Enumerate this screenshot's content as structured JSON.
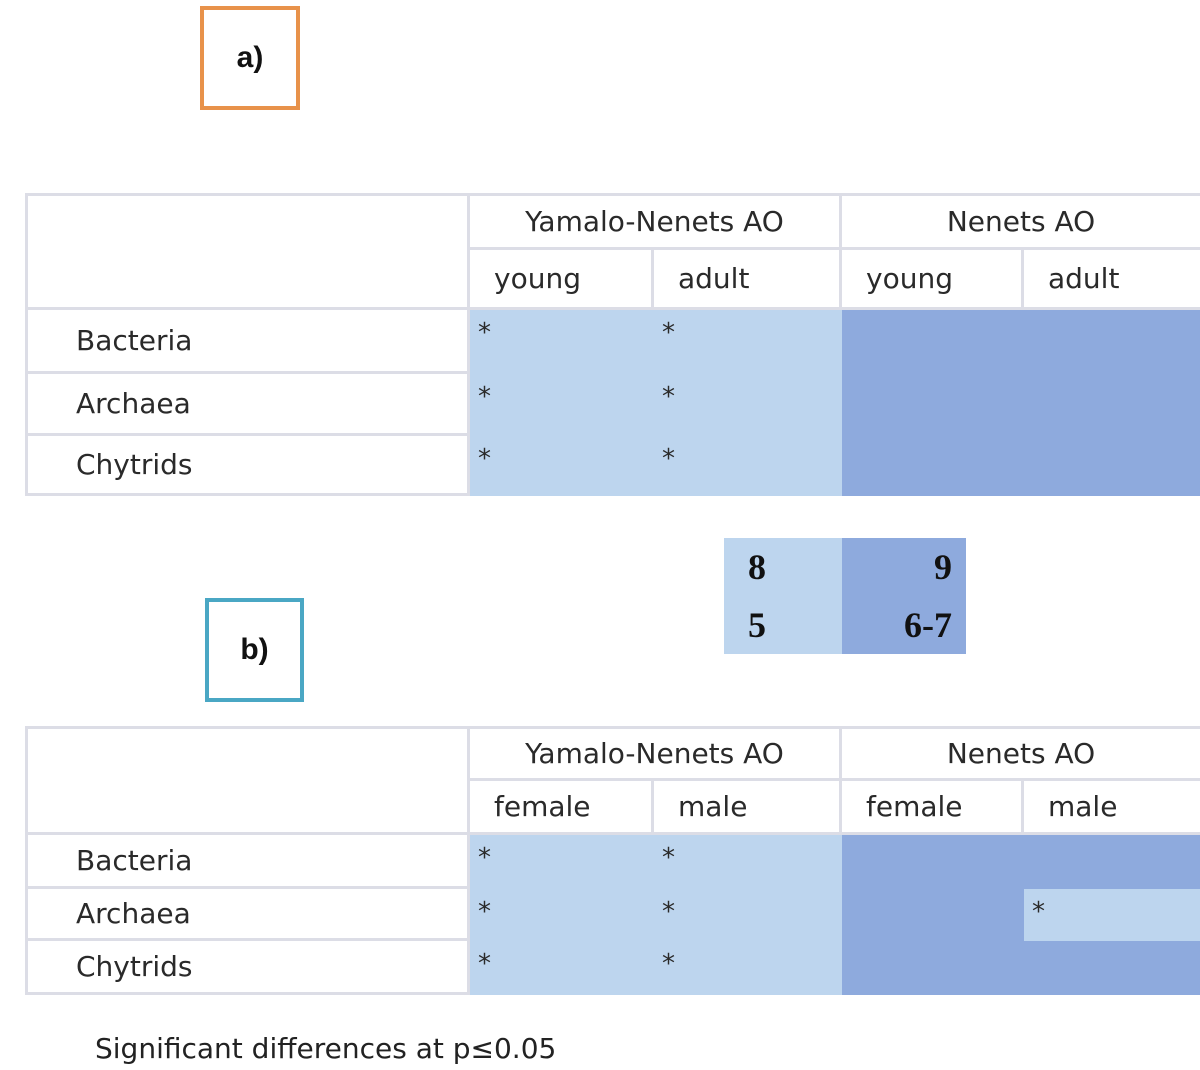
{
  "panel_a": {
    "label": "a)",
    "group1": "Yamalo-Nenets AO",
    "group2": "Nenets AO",
    "sub": [
      "young",
      "adult",
      "young",
      "adult"
    ],
    "rows": [
      {
        "name": "Bacteria",
        "marks": [
          "*",
          "*",
          "",
          ""
        ]
      },
      {
        "name": "Archaea",
        "marks": [
          "*",
          "*",
          "",
          ""
        ]
      },
      {
        "name": "Chytrids",
        "marks": [
          "*",
          "*",
          "",
          ""
        ]
      }
    ]
  },
  "legend": {
    "light_top": "8",
    "dark_top": "9",
    "light_bottom": "5",
    "dark_bottom": "6-7"
  },
  "panel_b": {
    "label": "b)",
    "group1": "Yamalo-Nenets AO",
    "group2": "Nenets AO",
    "sub": [
      "female",
      "male",
      "female",
      "male"
    ],
    "rows": [
      {
        "name": "Bacteria",
        "marks": [
          "*",
          "*",
          "",
          ""
        ]
      },
      {
        "name": "Archaea",
        "marks": [
          "*",
          "*",
          "",
          "*"
        ]
      },
      {
        "name": "Chytrids",
        "marks": [
          "*",
          "*",
          "",
          ""
        ]
      }
    ]
  },
  "footnote": "Significant differences at p≤0.05",
  "colors": {
    "light": "#bdd5ee",
    "dark": "#8eaadd",
    "label_a_border": "#e8924a",
    "label_b_border": "#4aa7c4"
  }
}
